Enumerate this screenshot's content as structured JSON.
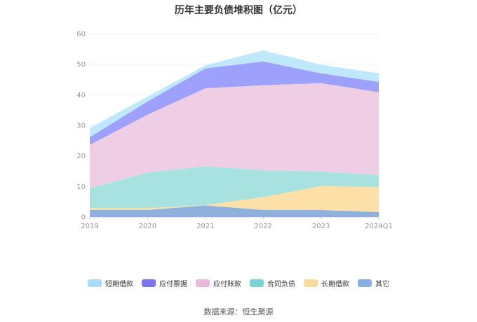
{
  "chart_data": {
    "type": "area",
    "stacked": true,
    "title": "历年主要负债堆积图（亿元）",
    "categories": [
      "2019",
      "2020",
      "2021",
      "2022",
      "2023",
      "2024Q1"
    ],
    "ylim": [
      0,
      60
    ],
    "yticks": [
      0,
      10,
      20,
      30,
      40,
      50,
      60
    ],
    "grid": true,
    "legend_position": "bottom",
    "series": [
      {
        "name": "其它",
        "color": "#8fb0dc",
        "values": [
          2.3,
          2.3,
          3.8,
          2.3,
          2.3,
          1.6
        ]
      },
      {
        "name": "长期借款",
        "color": "#fde0a8",
        "values": [
          0.6,
          0.6,
          0.1,
          4.2,
          7.8,
          8.2
        ]
      },
      {
        "name": "合同负债",
        "color": "#a8e2e0",
        "values": [
          6.5,
          11.6,
          12.7,
          8.8,
          4.7,
          4.0
        ]
      },
      {
        "name": "应付账款",
        "color": "#efcde5",
        "values": [
          14.2,
          19.0,
          25.5,
          27.8,
          29.0,
          27.0
        ]
      },
      {
        "name": "应付票据",
        "color": "#9da1fb",
        "values": [
          2.5,
          4.3,
          6.5,
          7.8,
          3.2,
          3.4
        ]
      },
      {
        "name": "短期借款",
        "color": "#c0e8fc",
        "values": [
          3.0,
          1.6,
          1.0,
          3.6,
          2.8,
          2.8
        ]
      }
    ],
    "legend_order": [
      "短期借款",
      "应付票据",
      "应付账款",
      "合同负债",
      "长期借款",
      "其它"
    ],
    "legend_colors": {
      "短期借款": "#a9dcfa",
      "应付票据": "#7b76ef",
      "应付账款": "#e9b8da",
      "合同负债": "#7dd2d4",
      "长期借款": "#fdd99a",
      "其它": "#8aaee0"
    }
  },
  "source_text": "数据来源：恒生聚源"
}
